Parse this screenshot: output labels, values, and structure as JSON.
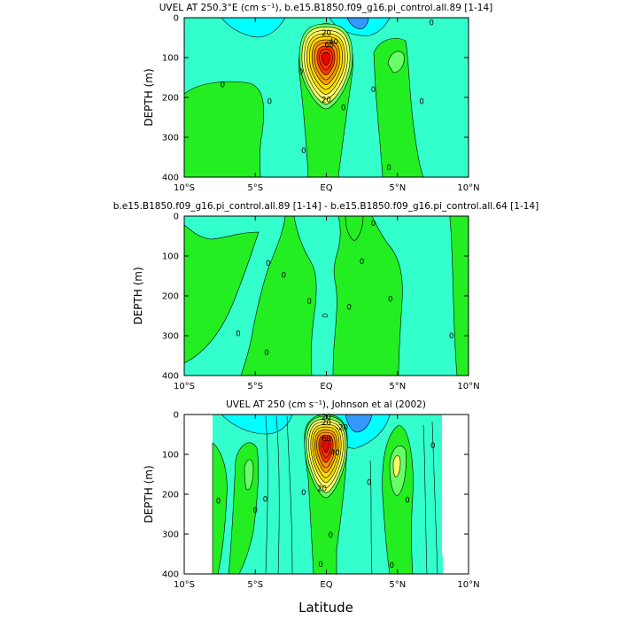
{
  "colors": {
    "water_lo": "#00ffff",
    "water": "#44f0f0",
    "teal": "#33ffcc",
    "green_lo": "#66ff66",
    "green": "#22ee22",
    "yellow_lo": "#ffff66",
    "yellow": "#ffdd00",
    "orange": "#ff9900",
    "red": "#ff3300",
    "deep_red": "#ee0000",
    "blue": "#3399ff"
  },
  "chart_data": [
    {
      "type": "contour",
      "title": "UVEL AT 250.3°E (cm s⁻¹), b.e15.B1850.f09_g16.pi_control.all.89 [1-14]",
      "xlabel": "",
      "ylabel": "DEPTH (m)",
      "xlim": [
        -10,
        10
      ],
      "ylim": [
        400,
        0
      ],
      "xticks": [
        "10°S",
        "5°S",
        "EQ",
        "5°N",
        "10°N"
      ],
      "yticks": [
        "0",
        "100",
        "200",
        "300",
        "400"
      ],
      "contour_labels": [
        {
          "text": "20",
          "x": 0.0,
          "y": 38
        },
        {
          "text": "40",
          "x": 0.5,
          "y": 60
        },
        {
          "text": "60",
          "x": 0.2,
          "y": 68
        },
        {
          "text": "20",
          "x": 0.0,
          "y": 205
        },
        {
          "text": "0",
          "x": -7.3,
          "y": 168
        },
        {
          "text": "0",
          "x": -4.0,
          "y": 210
        },
        {
          "text": "0",
          "x": -1.8,
          "y": 135
        },
        {
          "text": "0",
          "x": -1.6,
          "y": 333
        },
        {
          "text": "0",
          "x": 1.2,
          "y": 226
        },
        {
          "text": "0",
          "x": 3.3,
          "y": 180
        },
        {
          "text": "0",
          "x": 4.4,
          "y": 375
        },
        {
          "text": "0",
          "x": 6.7,
          "y": 210
        },
        {
          "text": "0",
          "x": 7.4,
          "y": 12
        }
      ]
    },
    {
      "type": "contour",
      "title": "b.e15.B1850.f09_g16.pi_control.all.89 [1-14] - b.e15.B1850.f09_g16.pi_control.all.64 [1-14]",
      "xlabel": "",
      "ylabel": "DEPTH (m)",
      "xlim": [
        -10,
        10
      ],
      "ylim": [
        400,
        0
      ],
      "xticks": [
        "10°S",
        "5°S",
        "EQ",
        "5°N",
        "10°N"
      ],
      "yticks": [
        "0",
        "100",
        "200",
        "300",
        "400"
      ],
      "contour_labels": [
        {
          "text": "0",
          "x": -4.1,
          "y": 118
        },
        {
          "text": "0",
          "x": -3.0,
          "y": 148
        },
        {
          "text": "0",
          "x": -6.2,
          "y": 294
        },
        {
          "text": "0",
          "x": -4.2,
          "y": 342
        },
        {
          "text": "0",
          "x": -1.2,
          "y": 213
        },
        {
          "text": "0",
          "x": 1.6,
          "y": 228
        },
        {
          "text": "0",
          "x": 2.5,
          "y": 113
        },
        {
          "text": "0",
          "x": 3.3,
          "y": 18
        },
        {
          "text": "0",
          "x": 4.5,
          "y": 208
        },
        {
          "text": "0",
          "x": 8.8,
          "y": 300
        }
      ]
    },
    {
      "type": "contour",
      "title": "UVEL AT 250 (cm s⁻¹), Johnson et al (2002)",
      "xlabel": "Latitude",
      "ylabel": "DEPTH (m)",
      "xlim": [
        -10,
        10
      ],
      "ylim": [
        400,
        0
      ],
      "xticks": [
        "10°S",
        "5°S",
        "EQ",
        "5°N",
        "10°N"
      ],
      "yticks": [
        "0",
        "100",
        "200",
        "300",
        "400"
      ],
      "contour_labels": [
        {
          "text": "20",
          "x": 0.0,
          "y": 6
        },
        {
          "text": "20",
          "x": 0.0,
          "y": 20
        },
        {
          "text": "60",
          "x": 0.0,
          "y": 60
        },
        {
          "text": "40",
          "x": 0.6,
          "y": 95
        },
        {
          "text": "20",
          "x": -0.3,
          "y": 185
        },
        {
          "text": "-20",
          "x": 1.1,
          "y": 32
        },
        {
          "text": "0",
          "x": -7.6,
          "y": 217
        },
        {
          "text": "0",
          "x": -5.0,
          "y": 240
        },
        {
          "text": "0",
          "x": -4.3,
          "y": 212
        },
        {
          "text": "0",
          "x": -1.6,
          "y": 195
        },
        {
          "text": "0",
          "x": -0.4,
          "y": 375
        },
        {
          "text": "0",
          "x": 0.3,
          "y": 302
        },
        {
          "text": "0",
          "x": 3.0,
          "y": 170
        },
        {
          "text": "0",
          "x": 4.6,
          "y": 378
        },
        {
          "text": "0",
          "x": 5.7,
          "y": 214
        },
        {
          "text": "0",
          "x": 7.5,
          "y": 78
        }
      ]
    }
  ]
}
